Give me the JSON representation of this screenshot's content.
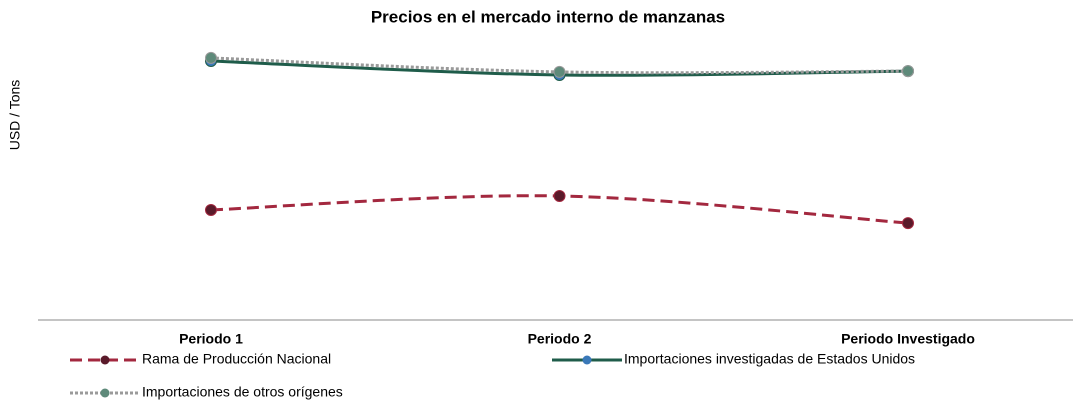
{
  "chart_data": {
    "type": "line",
    "title": "Precios en el mercado interno de manzanas",
    "y_label": "USD / Tons",
    "categories": [
      "Periodo 1",
      "Periodo 2",
      "Periodo Investigado"
    ],
    "ylim": [
      0,
      100
    ],
    "series": [
      {
        "name": "Rama de Producción Nacional",
        "color": "#a3283f",
        "marker_color": "#5a1a2a",
        "dash": "dashed",
        "values": [
          39.3,
          44.3,
          34.6
        ]
      },
      {
        "name": "Importaciones investigadas de Estados Unidos",
        "color": "#1f5c4a",
        "marker_color": "#3a78b8",
        "dash": "solid",
        "values": [
          92.5,
          87.5,
          88.9
        ]
      },
      {
        "name": "Importaciones de otros orígenes",
        "color": "#9a9a9a",
        "marker_color": "#5e8a7a",
        "dash": "dotted",
        "values": [
          93.6,
          88.6,
          88.9
        ]
      }
    ]
  }
}
